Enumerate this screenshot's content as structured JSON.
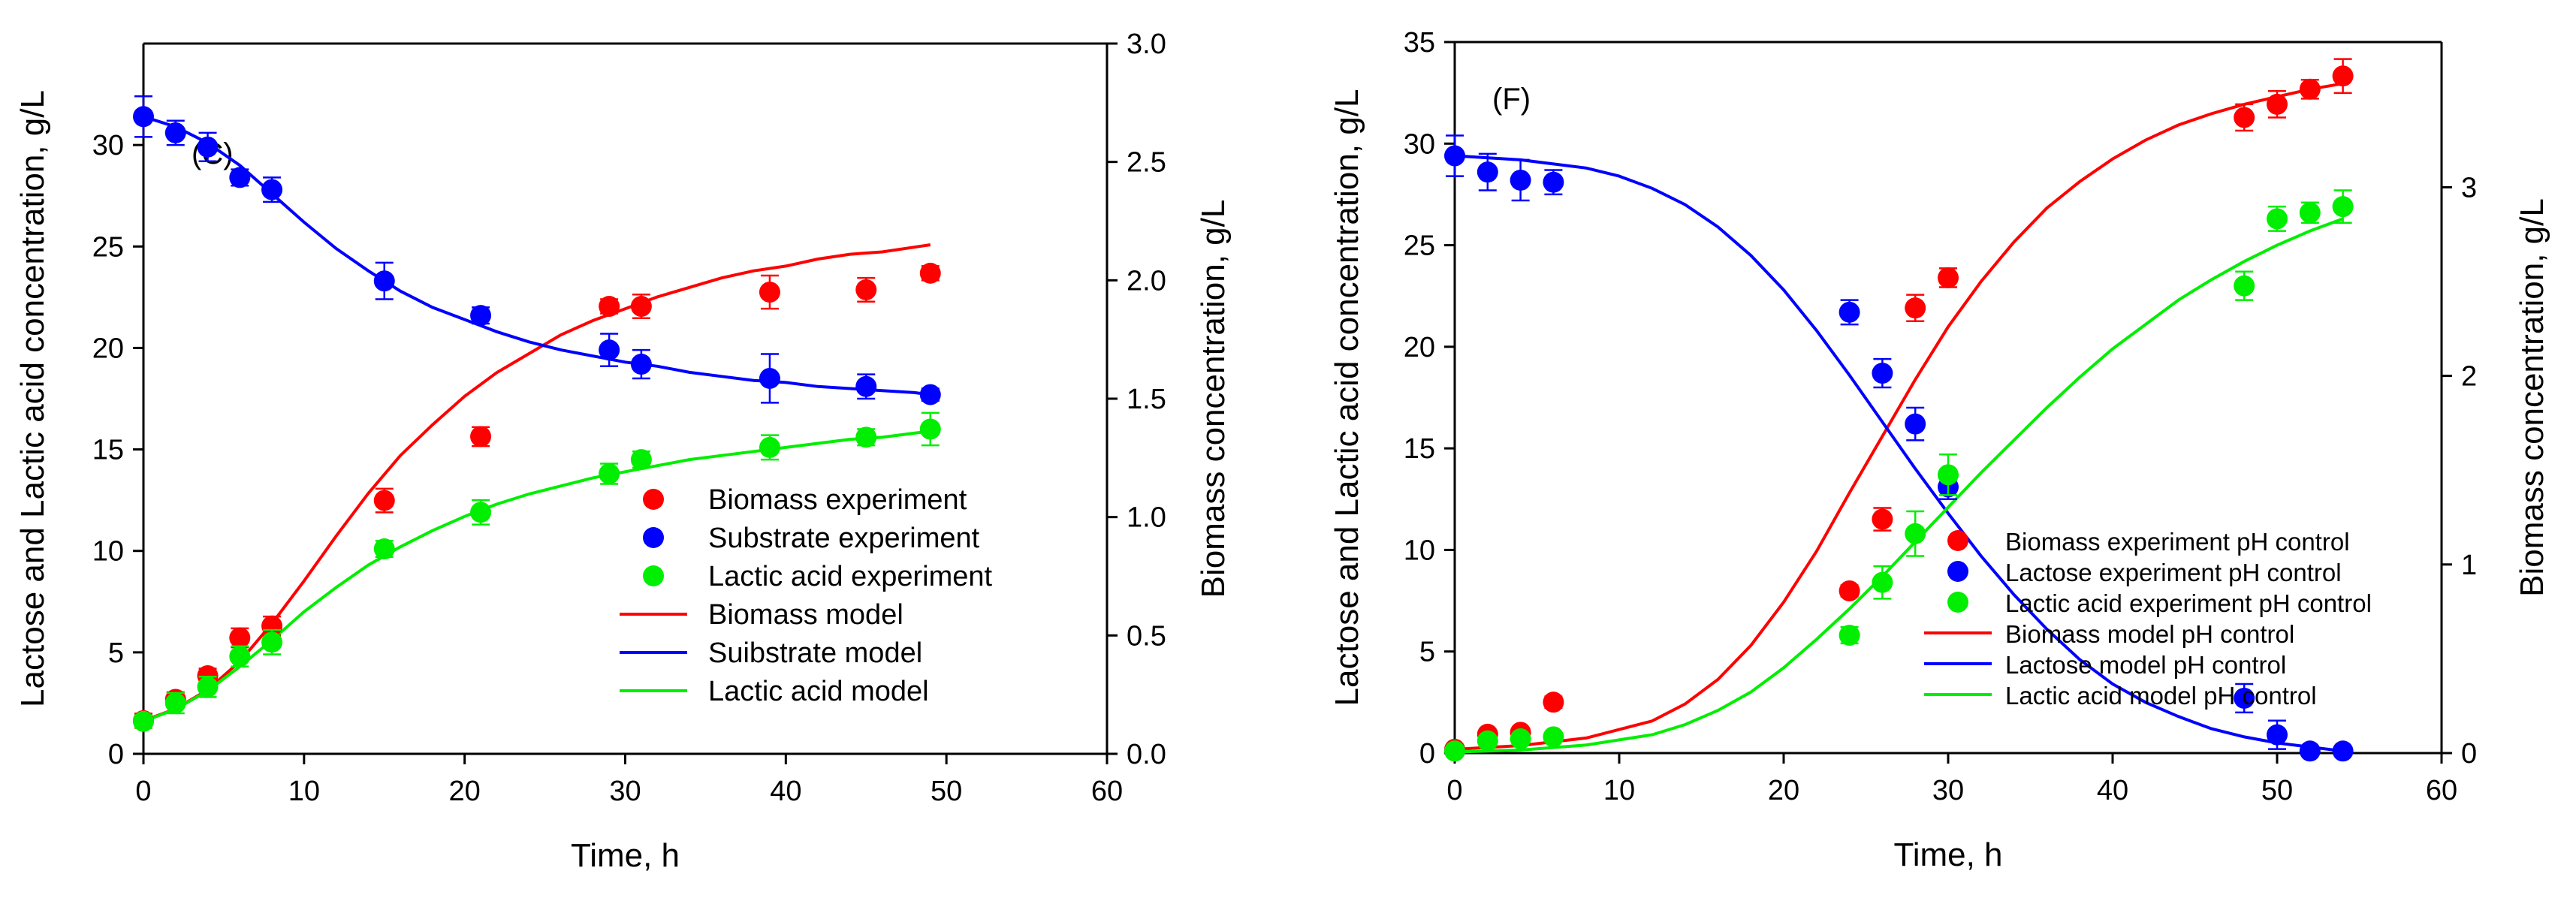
{
  "chart_data": [
    {
      "type": "scatter",
      "panel_label": "(C)",
      "xlabel": "Time, h",
      "ylabel_left": "Lactose and Lactic acid concentration, g/L",
      "ylabel_right": "Biomass concentration, g/L",
      "xlim": [
        0,
        60
      ],
      "ylim_left": [
        0,
        35
      ],
      "ylim_right": [
        0,
        3
      ],
      "xticks": [
        "0",
        "10",
        "20",
        "30",
        "40",
        "50",
        "60"
      ],
      "yticks_left": [
        "0",
        "5",
        "10",
        "15",
        "20",
        "25",
        "30"
      ],
      "yticks_right": [
        "0.0",
        "0.5",
        "1.0",
        "1.5",
        "2.0",
        "2.5",
        "3.0"
      ],
      "legend_position": "center-right",
      "series": [
        {
          "name": "Biomass experiment",
          "kind": "points",
          "axis": "right",
          "color": "#ff0000",
          "x": [
            0,
            2,
            4,
            6,
            8,
            15,
            21,
            29,
            31,
            39,
            45,
            49
          ],
          "y": [
            0.14,
            0.23,
            0.33,
            0.49,
            0.54,
            1.07,
            1.34,
            1.89,
            1.89,
            1.95,
            1.96,
            2.03
          ],
          "err": [
            0.03,
            0.03,
            0.03,
            0.04,
            0.04,
            0.05,
            0.04,
            0.03,
            0.05,
            0.07,
            0.05,
            0.03
          ]
        },
        {
          "name": "Substrate experiment",
          "kind": "points",
          "axis": "left",
          "color": "#0000ff",
          "x": [
            0,
            2,
            4,
            6,
            8,
            15,
            21,
            29,
            31,
            39,
            45,
            49
          ],
          "y": [
            31.4,
            30.6,
            29.9,
            28.4,
            27.8,
            23.3,
            21.6,
            19.9,
            19.2,
            18.5,
            18.1,
            17.7
          ],
          "err": [
            1.0,
            0.6,
            0.7,
            0.4,
            0.6,
            0.9,
            0.4,
            0.8,
            0.7,
            1.2,
            0.6,
            0.3
          ]
        },
        {
          "name": "Lactic acid experiment",
          "kind": "points",
          "axis": "left",
          "color": "#00ee00",
          "x": [
            0,
            2,
            4,
            6,
            8,
            15,
            21,
            29,
            31,
            39,
            45,
            49
          ],
          "y": [
            1.6,
            2.5,
            3.3,
            4.8,
            5.5,
            10.1,
            11.9,
            13.8,
            14.5,
            15.1,
            15.6,
            16.0
          ],
          "err": [
            0.3,
            0.5,
            0.5,
            0.5,
            0.6,
            0.4,
            0.6,
            0.5,
            0.4,
            0.6,
            0.4,
            0.8
          ]
        },
        {
          "name": "Biomass model",
          "kind": "line",
          "axis": "right",
          "color": "#ff0000",
          "x": [
            0,
            2,
            4,
            6,
            8,
            10,
            12,
            14,
            16,
            18,
            20,
            22,
            24,
            26,
            28,
            30,
            32,
            34,
            36,
            38,
            40,
            42,
            44,
            46,
            48,
            49
          ],
          "y": [
            0.14,
            0.19,
            0.27,
            0.39,
            0.55,
            0.73,
            0.92,
            1.1,
            1.26,
            1.39,
            1.51,
            1.61,
            1.69,
            1.77,
            1.83,
            1.88,
            1.93,
            1.97,
            2.01,
            2.04,
            2.06,
            2.09,
            2.11,
            2.12,
            2.14,
            2.15
          ]
        },
        {
          "name": "Suibstrate model",
          "kind": "line",
          "axis": "left",
          "color": "#0000ff",
          "x": [
            0,
            2,
            4,
            6,
            8,
            10,
            12,
            14,
            16,
            18,
            20,
            22,
            24,
            26,
            28,
            30,
            32,
            34,
            36,
            38,
            40,
            42,
            44,
            46,
            48,
            49
          ],
          "y": [
            31.4,
            30.9,
            30.1,
            29.0,
            27.6,
            26.2,
            24.9,
            23.8,
            22.8,
            22.0,
            21.4,
            20.8,
            20.3,
            19.9,
            19.6,
            19.3,
            19.1,
            18.8,
            18.6,
            18.4,
            18.3,
            18.1,
            18.0,
            17.9,
            17.8,
            17.7
          ]
        },
        {
          "name": "Lactic acid model",
          "kind": "line",
          "axis": "left",
          "color": "#00ee00",
          "x": [
            0,
            2,
            4,
            6,
            8,
            10,
            12,
            14,
            16,
            18,
            20,
            22,
            24,
            26,
            28,
            30,
            32,
            34,
            36,
            38,
            40,
            42,
            44,
            46,
            48,
            49
          ],
          "y": [
            1.6,
            2.2,
            3.1,
            4.3,
            5.6,
            7.0,
            8.2,
            9.3,
            10.2,
            11.0,
            11.7,
            12.3,
            12.8,
            13.2,
            13.6,
            13.9,
            14.2,
            14.5,
            14.7,
            14.9,
            15.1,
            15.3,
            15.5,
            15.6,
            15.8,
            15.9
          ]
        }
      ]
    },
    {
      "type": "scatter",
      "panel_label": "(F)",
      "xlabel": "Time, h",
      "ylabel_left": "Lactose and Lactic acid concentration, g/L",
      "ylabel_right": "Biomass concentration, g/L",
      "xlim": [
        0,
        60
      ],
      "ylim_left": [
        0,
        35
      ],
      "ylim_right": [
        0,
        3.77
      ],
      "xticks": [
        "0",
        "10",
        "20",
        "30",
        "40",
        "50",
        "60"
      ],
      "yticks_left": [
        "0",
        "5",
        "10",
        "15",
        "20",
        "25",
        "30",
        "35"
      ],
      "yticks_right": [
        "0",
        "1",
        "2",
        "3"
      ],
      "legend_position": "bottom-right",
      "series": [
        {
          "name": "Biomass experiment pH control",
          "kind": "points",
          "axis": "right",
          "color": "#ff0000",
          "x": [
            0,
            2,
            4,
            6,
            24,
            26,
            28,
            30,
            48,
            50,
            52,
            54
          ],
          "y": [
            0.02,
            0.1,
            0.11,
            0.27,
            0.86,
            1.24,
            2.36,
            2.52,
            3.37,
            3.44,
            3.52,
            3.59
          ],
          "err": [
            0.02,
            0.02,
            0.02,
            0.03,
            0.03,
            0.06,
            0.07,
            0.05,
            0.07,
            0.07,
            0.05,
            0.09
          ]
        },
        {
          "name": "Lactose experiment pH control",
          "kind": "points",
          "axis": "left",
          "color": "#0000ff",
          "x": [
            0,
            2,
            4,
            6,
            24,
            26,
            28,
            30,
            48,
            50,
            52,
            54
          ],
          "y": [
            29.4,
            28.6,
            28.2,
            28.1,
            21.7,
            18.7,
            16.2,
            13.1,
            2.7,
            0.9,
            0.1,
            0.1
          ],
          "err": [
            1.0,
            0.9,
            1.0,
            0.6,
            0.6,
            0.7,
            0.8,
            0.6,
            0.7,
            0.7,
            0.2,
            0.1
          ]
        },
        {
          "name": "Lactic acid experiment pH control",
          "kind": "points",
          "axis": "left",
          "color": "#00ee00",
          "x": [
            0,
            2,
            4,
            6,
            24,
            26,
            28,
            30,
            48,
            50,
            52,
            54
          ],
          "y": [
            0.1,
            0.6,
            0.7,
            0.8,
            5.8,
            8.4,
            10.8,
            13.7,
            23.0,
            26.3,
            26.6,
            26.9
          ],
          "err": [
            0.1,
            0.1,
            0.1,
            0.1,
            0.4,
            0.8,
            1.1,
            1.0,
            0.7,
            0.6,
            0.5,
            0.8
          ]
        },
        {
          "name": "Biomass model pH control",
          "kind": "line",
          "axis": "right",
          "color": "#ff0000",
          "x": [
            0,
            4,
            8,
            12,
            14,
            16,
            18,
            20,
            22,
            24,
            26,
            28,
            30,
            32,
            34,
            36,
            38,
            40,
            42,
            44,
            46,
            48,
            50,
            52,
            54
          ],
          "y": [
            0.02,
            0.04,
            0.08,
            0.17,
            0.26,
            0.39,
            0.57,
            0.8,
            1.07,
            1.38,
            1.68,
            1.98,
            2.26,
            2.5,
            2.71,
            2.89,
            3.03,
            3.15,
            3.25,
            3.33,
            3.39,
            3.44,
            3.48,
            3.52,
            3.55
          ]
        },
        {
          "name": "Lactose model pH control",
          "kind": "line",
          "axis": "left",
          "color": "#0000ff",
          "x": [
            0,
            4,
            8,
            10,
            12,
            14,
            16,
            18,
            20,
            22,
            24,
            26,
            28,
            30,
            32,
            34,
            36,
            38,
            40,
            42,
            44,
            46,
            48,
            50,
            52,
            54
          ],
          "y": [
            29.4,
            29.2,
            28.8,
            28.4,
            27.8,
            27.0,
            25.9,
            24.5,
            22.8,
            20.8,
            18.6,
            16.3,
            14.0,
            11.8,
            9.7,
            7.8,
            6.1,
            4.6,
            3.4,
            2.5,
            1.8,
            1.2,
            0.8,
            0.5,
            0.3,
            0.1
          ]
        },
        {
          "name": "Lactic acid model pH control",
          "kind": "line",
          "axis": "left",
          "color": "#00ee00",
          "x": [
            0,
            4,
            8,
            12,
            14,
            16,
            18,
            20,
            22,
            24,
            26,
            28,
            30,
            32,
            34,
            36,
            38,
            40,
            42,
            44,
            46,
            48,
            50,
            52,
            54
          ],
          "y": [
            0.05,
            0.15,
            0.4,
            0.9,
            1.4,
            2.1,
            3.0,
            4.2,
            5.6,
            7.1,
            8.7,
            10.4,
            12.1,
            13.8,
            15.4,
            17.0,
            18.5,
            19.9,
            21.1,
            22.3,
            23.3,
            24.2,
            25.0,
            25.7,
            26.3
          ]
        }
      ]
    }
  ]
}
